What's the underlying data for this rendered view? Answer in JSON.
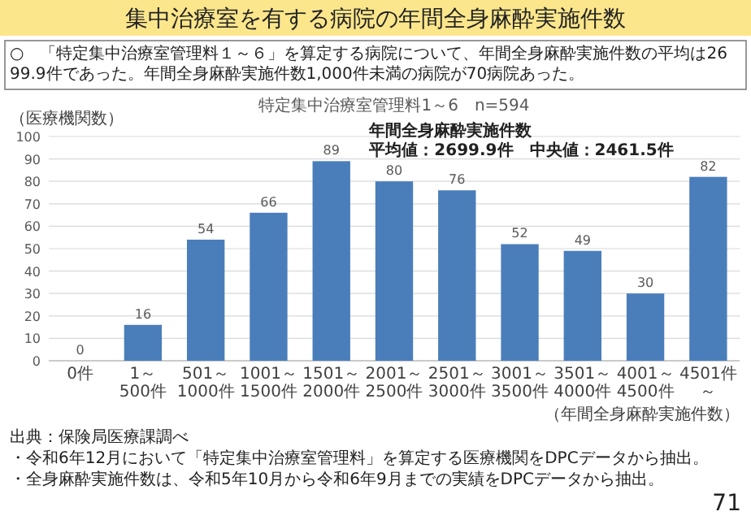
{
  "chart_data": {
    "type": "bar",
    "title": "集中治療室を有する病院の年間全身麻酔実施件数",
    "subtitle": "○　「特定集中治療室管理料１～６」を算定する病院について、年間全身麻酔実施件数の平均は2699.9件であった。年間全身麻酔実施件数1,000件未満の病院が70病院あった。",
    "ylabel": "（医療機関数）",
    "xlabel": "（年間全身麻酔実施件数）",
    "categories": [
      "0件",
      "1～500件",
      "501～1000件",
      "1001～1500件",
      "1501～2000件",
      "2001～2500件",
      "2501～3000件",
      "3001～3500件",
      "3501～4000件",
      "4001～4500件",
      "4501件～"
    ],
    "values": [
      0,
      16,
      54,
      66,
      89,
      80,
      76,
      52,
      49,
      30,
      82
    ],
    "color": "#4a7ebb",
    "ylim": [
      0,
      100
    ],
    "yticks": [
      0,
      10,
      20,
      30,
      40,
      50,
      60,
      70,
      80,
      90,
      100
    ],
    "grid": "y",
    "data_labels": true,
    "annotations": [
      "特定集中治療室管理料1～6　n=594",
      "年間全身麻酔実施件数",
      "平均値：2699.9件　中央値：2461.5件",
      "出典：保険局医療課調べ",
      "・令和6年12月において「特定集中治療室管理料」を算定する医療機関をDPCデータから抽出。",
      "・全身麻酔実施件数は、令和5年10月から令和6年9月までの実績をDPCデータから抽出。",
      "71"
    ]
  }
}
